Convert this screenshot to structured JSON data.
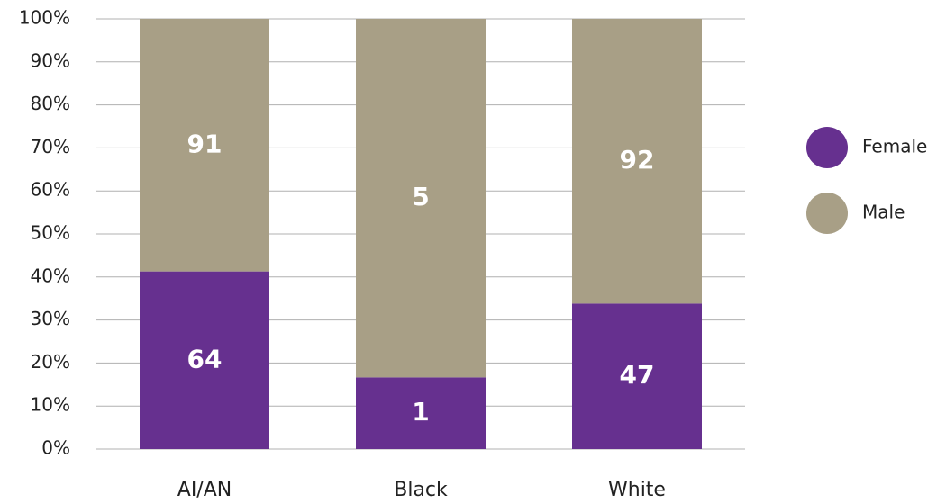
{
  "chart_data": {
    "type": "bar",
    "stacking": "percent",
    "categories": [
      "AI/AN",
      "Black",
      "White"
    ],
    "series": [
      {
        "name": "Female",
        "color": "#66308f",
        "values": [
          64,
          1,
          47
        ]
      },
      {
        "name": "Male",
        "color": "#a89f86",
        "values": [
          91,
          5,
          92
        ]
      }
    ],
    "ylim": [
      0,
      100
    ],
    "yticks": [
      {
        "value": 0,
        "label": "0%"
      },
      {
        "value": 10,
        "label": "10%"
      },
      {
        "value": 20,
        "label": "20%"
      },
      {
        "value": 30,
        "label": "30%"
      },
      {
        "value": 40,
        "label": "40%"
      },
      {
        "value": 50,
        "label": "50%"
      },
      {
        "value": 60,
        "label": "60%"
      },
      {
        "value": 70,
        "label": "70%"
      },
      {
        "value": 80,
        "label": "80%"
      },
      {
        "value": 90,
        "label": "90%"
      },
      {
        "value": 100,
        "label": "100%"
      }
    ],
    "grid": true,
    "legend": "right"
  }
}
